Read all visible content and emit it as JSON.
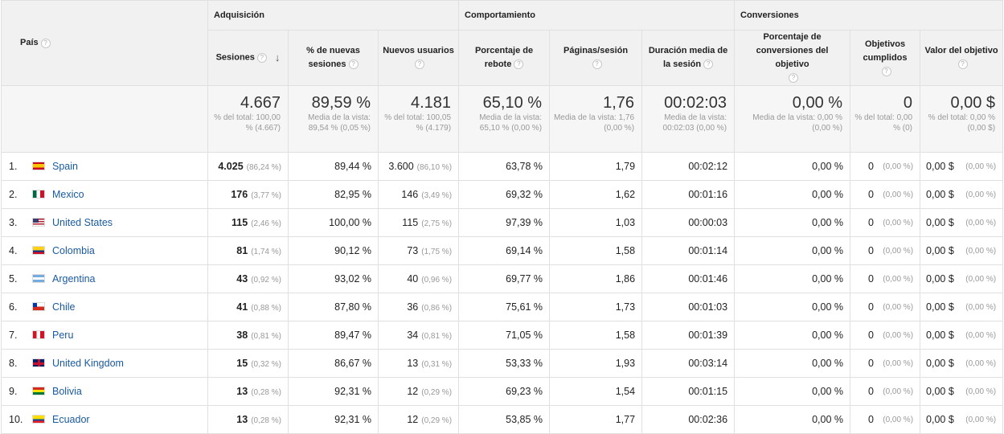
{
  "groups": {
    "adquisicion": "Adquisición",
    "comportamiento": "Comportamiento",
    "conversiones": "Conversiones"
  },
  "columns": {
    "pais": "País",
    "sesiones": "Sesiones",
    "nuevas_sesiones": "% de nuevas sesiones",
    "nuevos_usuarios": "Nuevos usuarios",
    "rebote": "Porcentaje de rebote",
    "paginas": "Páginas/sesión",
    "duracion": "Duración media de la sesión",
    "conv_obj": "Porcentaje de conversiones del objetivo",
    "obj_cumplidos": "Objetivos cumplidos",
    "valor_obj": "Valor del objetivo"
  },
  "help_icon": "?",
  "sort_icon": "↓",
  "totals": {
    "sesiones": {
      "value": "4.667",
      "sub": "% del total: 100,00 % (4.667)"
    },
    "nuevas_sesiones": {
      "value": "89,59 %",
      "sub": "Media de la vista: 89,54 % (0,05 %)"
    },
    "nuevos_usuarios": {
      "value": "4.181",
      "sub": "% del total: 100,05 % (4.179)"
    },
    "rebote": {
      "value": "65,10 %",
      "sub": "Media de la vista: 65,10 % (0,00 %)"
    },
    "paginas": {
      "value": "1,76",
      "sub": "Media de la vista: 1,76 (0,00 %)"
    },
    "duracion": {
      "value": "00:02:03",
      "sub": "Media de la vista: 00:02:03 (0,00 %)"
    },
    "conv_obj": {
      "value": "0,00 %",
      "sub": "Media de la vista: 0,00 % (0,00 %)"
    },
    "obj_cumplidos": {
      "value": "0",
      "sub": "% del total: 0,00 % (0)"
    },
    "valor_obj": {
      "value": "0,00 $",
      "sub": "% del total: 0,00 % (0,00 $)"
    }
  },
  "rows": [
    {
      "idx": "1.",
      "country": "Spain",
      "flag": "es",
      "sessions": "4.025",
      "sessions_pct": "(86,24 %)",
      "new_sessions": "89,44 %",
      "new_users": "3.600",
      "new_users_pct": "(86,10 %)",
      "bounce": "63,78 %",
      "pages": "1,79",
      "duration": "00:02:12",
      "conv": "0,00 %",
      "goals": "0",
      "goals_pct": "(0,00 %)",
      "value": "0,00 $",
      "value_pct": "(0,00 %)"
    },
    {
      "idx": "2.",
      "country": "Mexico",
      "flag": "mx",
      "sessions": "176",
      "sessions_pct": "(3,77 %)",
      "new_sessions": "82,95 %",
      "new_users": "146",
      "new_users_pct": "(3,49 %)",
      "bounce": "69,32 %",
      "pages": "1,62",
      "duration": "00:01:16",
      "conv": "0,00 %",
      "goals": "0",
      "goals_pct": "(0,00 %)",
      "value": "0,00 $",
      "value_pct": "(0,00 %)"
    },
    {
      "idx": "3.",
      "country": "United States",
      "flag": "us",
      "sessions": "115",
      "sessions_pct": "(2,46 %)",
      "new_sessions": "100,00 %",
      "new_users": "115",
      "new_users_pct": "(2,75 %)",
      "bounce": "97,39 %",
      "pages": "1,03",
      "duration": "00:00:03",
      "conv": "0,00 %",
      "goals": "0",
      "goals_pct": "(0,00 %)",
      "value": "0,00 $",
      "value_pct": "(0,00 %)"
    },
    {
      "idx": "4.",
      "country": "Colombia",
      "flag": "co",
      "sessions": "81",
      "sessions_pct": "(1,74 %)",
      "new_sessions": "90,12 %",
      "new_users": "73",
      "new_users_pct": "(1,75 %)",
      "bounce": "69,14 %",
      "pages": "1,58",
      "duration": "00:01:14",
      "conv": "0,00 %",
      "goals": "0",
      "goals_pct": "(0,00 %)",
      "value": "0,00 $",
      "value_pct": "(0,00 %)"
    },
    {
      "idx": "5.",
      "country": "Argentina",
      "flag": "ar",
      "sessions": "43",
      "sessions_pct": "(0,92 %)",
      "new_sessions": "93,02 %",
      "new_users": "40",
      "new_users_pct": "(0,96 %)",
      "bounce": "69,77 %",
      "pages": "1,86",
      "duration": "00:01:46",
      "conv": "0,00 %",
      "goals": "0",
      "goals_pct": "(0,00 %)",
      "value": "0,00 $",
      "value_pct": "(0,00 %)"
    },
    {
      "idx": "6.",
      "country": "Chile",
      "flag": "cl",
      "sessions": "41",
      "sessions_pct": "(0,88 %)",
      "new_sessions": "87,80 %",
      "new_users": "36",
      "new_users_pct": "(0,86 %)",
      "bounce": "75,61 %",
      "pages": "1,73",
      "duration": "00:01:03",
      "conv": "0,00 %",
      "goals": "0",
      "goals_pct": "(0,00 %)",
      "value": "0,00 $",
      "value_pct": "(0,00 %)"
    },
    {
      "idx": "7.",
      "country": "Peru",
      "flag": "pe",
      "sessions": "38",
      "sessions_pct": "(0,81 %)",
      "new_sessions": "89,47 %",
      "new_users": "34",
      "new_users_pct": "(0,81 %)",
      "bounce": "71,05 %",
      "pages": "1,58",
      "duration": "00:01:39",
      "conv": "0,00 %",
      "goals": "0",
      "goals_pct": "(0,00 %)",
      "value": "0,00 $",
      "value_pct": "(0,00 %)"
    },
    {
      "idx": "8.",
      "country": "United Kingdom",
      "flag": "gb",
      "sessions": "15",
      "sessions_pct": "(0,32 %)",
      "new_sessions": "86,67 %",
      "new_users": "13",
      "new_users_pct": "(0,31 %)",
      "bounce": "53,33 %",
      "pages": "1,93",
      "duration": "00:03:14",
      "conv": "0,00 %",
      "goals": "0",
      "goals_pct": "(0,00 %)",
      "value": "0,00 $",
      "value_pct": "(0,00 %)"
    },
    {
      "idx": "9.",
      "country": "Bolivia",
      "flag": "bo",
      "sessions": "13",
      "sessions_pct": "(0,28 %)",
      "new_sessions": "92,31 %",
      "new_users": "12",
      "new_users_pct": "(0,29 %)",
      "bounce": "69,23 %",
      "pages": "1,54",
      "duration": "00:01:15",
      "conv": "0,00 %",
      "goals": "0",
      "goals_pct": "(0,00 %)",
      "value": "0,00 $",
      "value_pct": "(0,00 %)"
    },
    {
      "idx": "10.",
      "country": "Ecuador",
      "flag": "ec",
      "sessions": "13",
      "sessions_pct": "(0,28 %)",
      "new_sessions": "92,31 %",
      "new_users": "12",
      "new_users_pct": "(0,29 %)",
      "bounce": "53,85 %",
      "pages": "1,77",
      "duration": "00:02:36",
      "conv": "0,00 %",
      "goals": "0",
      "goals_pct": "(0,00 %)",
      "value": "0,00 $",
      "value_pct": "(0,00 %)"
    }
  ]
}
